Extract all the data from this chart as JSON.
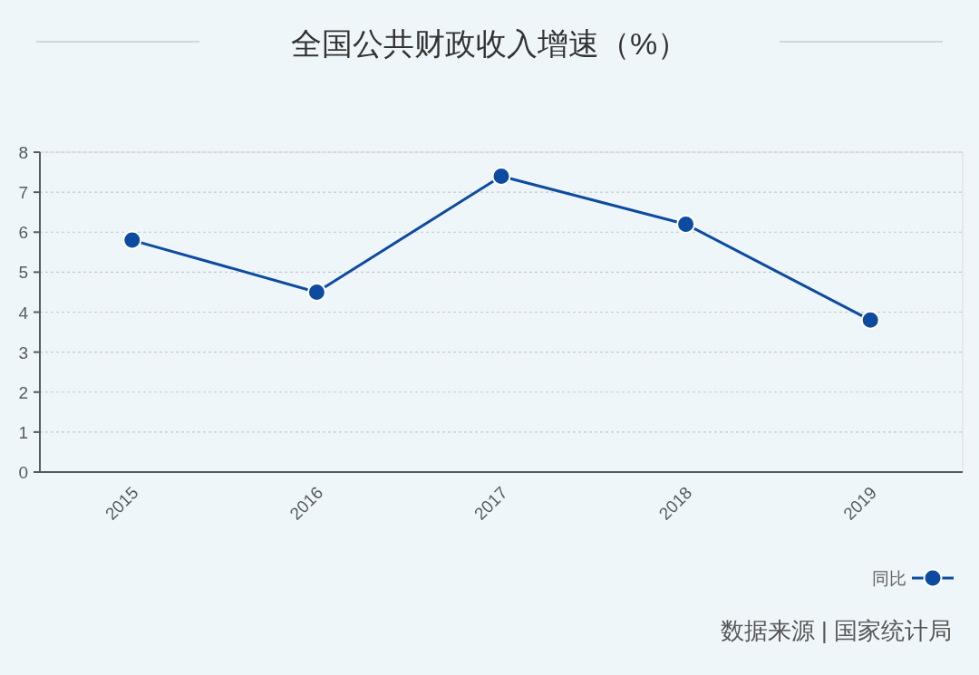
{
  "chart_data": {
    "type": "line",
    "title": "全国公共财政收入增速（%）",
    "categories": [
      "2015",
      "2016",
      "2017",
      "2018",
      "2019"
    ],
    "series": [
      {
        "name": "同比",
        "color": "#0d4ba0",
        "values": [
          5.8,
          4.5,
          7.4,
          6.2,
          3.8
        ]
      }
    ],
    "ylim": [
      0,
      8
    ],
    "yticks": [
      0,
      1,
      2,
      3,
      4,
      5,
      6,
      7,
      8
    ],
    "grid": "y",
    "legend": "bottom right",
    "marker": "circle",
    "line_style": "solid",
    "annotations": [
      "数据来源 | 国家统计局"
    ]
  }
}
